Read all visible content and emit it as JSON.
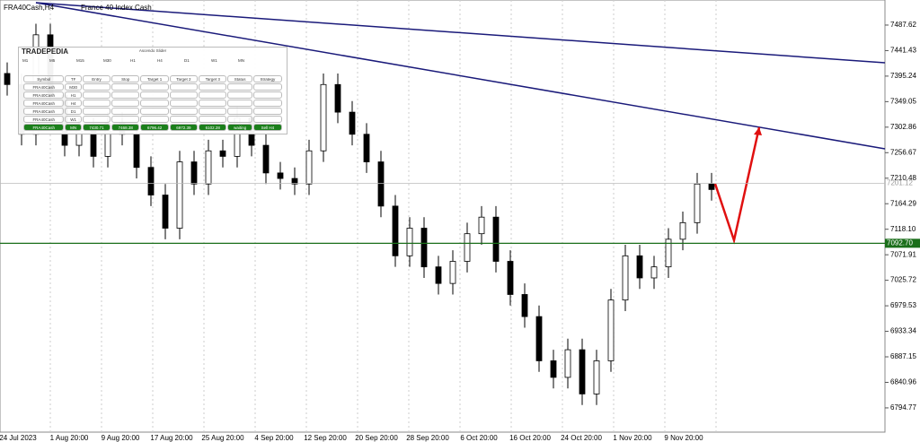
{
  "chart_data": {
    "type": "candlestick",
    "title": "FRA40Cash,H4",
    "subtitle": "France 40 Index Cash",
    "open": [
      7400,
      7380,
      7290,
      7470,
      7360,
      7270,
      7300,
      7250,
      7310,
      7290,
      7230,
      7180,
      7120,
      7240,
      7200,
      7260,
      7250,
      7320,
      7270,
      7220,
      7210,
      7200,
      7260,
      7380,
      7330,
      7290,
      7240,
      7160,
      7070,
      7120,
      7050,
      7020,
      7060,
      7110,
      7140,
      7060,
      7000,
      6960,
      6880,
      6850,
      6900,
      6820,
      6880,
      6990,
      7070,
      7030,
      7050,
      7100,
      7130,
      7200
    ],
    "high": [
      7420,
      7400,
      7490,
      7490,
      7380,
      7320,
      7320,
      7330,
      7330,
      7310,
      7250,
      7200,
      7260,
      7260,
      7280,
      7280,
      7340,
      7340,
      7290,
      7240,
      7230,
      7280,
      7400,
      7400,
      7350,
      7310,
      7260,
      7180,
      7140,
      7140,
      7070,
      7080,
      7130,
      7160,
      7160,
      7080,
      7020,
      6980,
      6900,
      6920,
      6920,
      6900,
      7010,
      7090,
      7090,
      7070,
      7120,
      7150,
      7220,
      7220
    ],
    "low": [
      7360,
      7270,
      7270,
      7340,
      7250,
      7250,
      7230,
      7230,
      7270,
      7210,
      7160,
      7100,
      7100,
      7180,
      7180,
      7230,
      7230,
      7250,
      7200,
      7190,
      7180,
      7180,
      7240,
      7310,
      7270,
      7220,
      7140,
      7050,
      7050,
      7030,
      7000,
      7000,
      7040,
      7090,
      7040,
      6980,
      6940,
      6860,
      6830,
      6830,
      6800,
      6800,
      6860,
      6970,
      7010,
      7010,
      7030,
      7080,
      7110,
      7170
    ],
    "close": [
      7380,
      7290,
      7470,
      7360,
      7270,
      7300,
      7250,
      7310,
      7290,
      7230,
      7180,
      7120,
      7240,
      7200,
      7260,
      7250,
      7320,
      7270,
      7220,
      7210,
      7200,
      7260,
      7380,
      7330,
      7290,
      7240,
      7160,
      7070,
      7120,
      7050,
      7020,
      7060,
      7110,
      7140,
      7060,
      7000,
      6960,
      6880,
      6850,
      6900,
      6820,
      6880,
      6990,
      7070,
      7030,
      7050,
      7100,
      7130,
      7200,
      7190
    ],
    "date_labels": [
      "24 Jul 2023",
      "1 Aug 20:00",
      "9 Aug 20:00",
      "17 Aug 20:00",
      "25 Aug 20:00",
      "4 Sep 20:00",
      "12 Sep 20:00",
      "20 Sep 20:00",
      "28 Sep 20:00",
      "6 Oct 20:00",
      "16 Oct 20:00",
      "24 Oct 20:00",
      "1 Nov 20:00",
      "9 Nov 20:00"
    ],
    "ylim": [
      6746,
      7533
    ],
    "yticks": [
      7487.62,
      7441.43,
      7395.24,
      7349.05,
      7302.86,
      7256.67,
      7210.48,
      7164.29,
      {
        "value": 7118.1,
        "label": "7118.10"
      },
      7071.91,
      7025.72,
      6979.53,
      6933.34,
      6887.15,
      6840.96,
      6794.77
    ],
    "price_line": {
      "value": 7092.7,
      "label": "7092.70",
      "color": "#1a6e1a"
    },
    "current_price": {
      "value": 7201.12,
      "label": "7201.12"
    },
    "grid": true
  },
  "panel": {
    "title": "Ascendo Slider",
    "logo": "TRADEPEDIA",
    "timeframes": [
      "M1",
      "M5",
      "M15",
      "M30",
      "H1",
      "H4",
      "D1",
      "W1",
      "MN"
    ],
    "header": [
      "Symbol",
      "TF",
      "Entry",
      "Stop",
      "Target 1",
      "Target 2",
      "Target 3",
      "Status",
      "Strategy"
    ],
    "rows": [
      [
        "FRA40Cash",
        "M30"
      ],
      [
        "FRA40Cash",
        "H1"
      ],
      [
        "FRA40Cash",
        "H4"
      ],
      [
        "FRA40Cash",
        "D1"
      ],
      [
        "FRA40Cash",
        "W1"
      ],
      [
        "FRA40Cash",
        "MN",
        "7430.71",
        "7468.38",
        "6796.42",
        "6972.39",
        "6102.28",
        "waiting",
        "Sell H4"
      ]
    ]
  }
}
